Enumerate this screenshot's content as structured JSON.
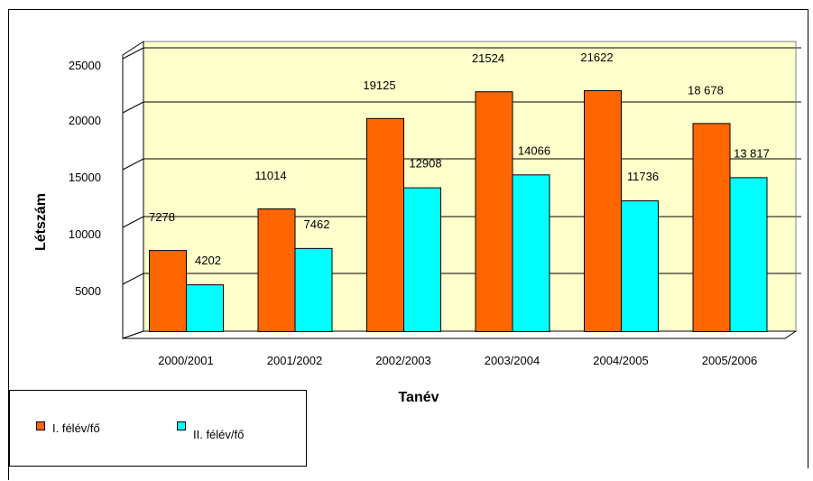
{
  "chart_data": {
    "type": "bar",
    "title": "",
    "xlabel": "Tanév",
    "ylabel": "Létszám",
    "categories": [
      "2000/2001",
      "2001/2002",
      "2002/2003",
      "2003/2004",
      "2004/2005",
      "2005/2006"
    ],
    "series": [
      {
        "name": "I. félév/fő",
        "values": [
          7278,
          11014,
          19125,
          21524,
          21622,
          18678
        ],
        "labels": [
          "7278",
          "11014",
          "19125",
          "21524",
          "21622",
          "18 678"
        ],
        "color": "#ff6600"
      },
      {
        "name": "II. félév/fő",
        "values": [
          4202,
          7462,
          12908,
          14066,
          11736,
          13817
        ],
        "labels": [
          "4202",
          "7462",
          "12908",
          "14066",
          "11736",
          "13 817"
        ],
        "color": "#00ffff"
      }
    ],
    "yticks": [
      5000,
      10000,
      15000,
      20000,
      25000
    ],
    "ylim": [
      0,
      25000
    ],
    "grid": true,
    "legend_position": "bottom-left",
    "plot_background": "#ffffcc"
  }
}
